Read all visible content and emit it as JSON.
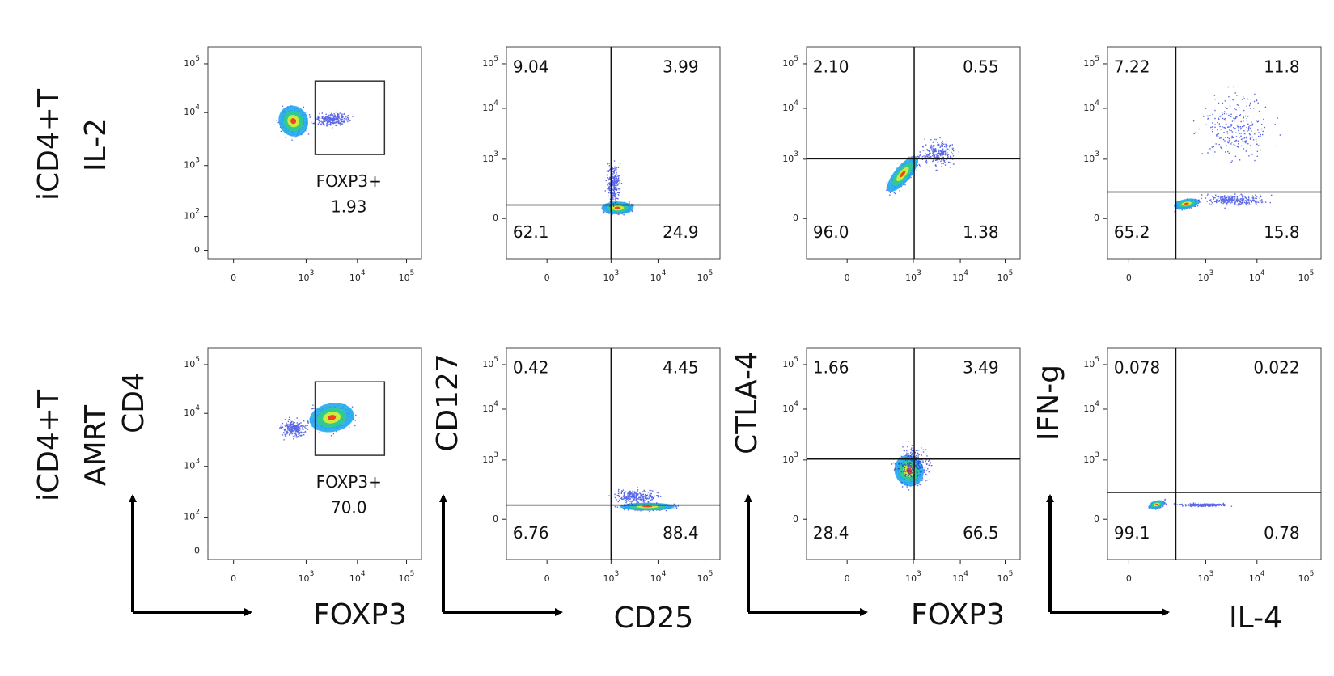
{
  "rows": [
    {
      "label": [
        "iCD4+T",
        "IL-2"
      ]
    },
    {
      "label": [
        "iCD4+T",
        "AMRT"
      ]
    }
  ],
  "columns": [
    {
      "y_axis": "CD4",
      "x_axis": "FOXP3"
    },
    {
      "y_axis": "CD127",
      "x_axis": "CD25"
    },
    {
      "y_axis": "CTLA-4",
      "x_axis": "FOXP3"
    },
    {
      "y_axis": "IFN-g",
      "x_axis": "IL-4"
    }
  ],
  "gate_yticks": [
    {
      "base": "10",
      "exp": "5"
    },
    {
      "base": "10",
      "exp": "4"
    },
    {
      "base": "10",
      "exp": "3"
    },
    {
      "base": "10",
      "exp": "2"
    },
    "0"
  ],
  "quad_yticks": [
    {
      "base": "10",
      "exp": "5"
    },
    {
      "base": "10",
      "exp": "4"
    },
    {
      "base": "10",
      "exp": "3"
    },
    "0"
  ],
  "xticks": [
    "0",
    {
      "base": "10",
      "exp": "3"
    },
    {
      "base": "10",
      "exp": "4"
    },
    {
      "base": "10",
      "exp": "5"
    }
  ],
  "panels": [
    [
      {
        "gate": "FOXP3+",
        "value": "1.93"
      },
      {
        "quadrants": [
          "9.04",
          "3.99",
          "62.1",
          "24.9"
        ]
      },
      {
        "quadrants": [
          "2.10",
          "0.55",
          "96.0",
          "1.38"
        ]
      },
      {
        "quadrants": [
          "7.22",
          "11.8",
          "65.2",
          "15.8"
        ]
      }
    ],
    [
      {
        "gate": "FOXP3+",
        "value": "70.0"
      },
      {
        "quadrants": [
          "0.42",
          "4.45",
          "6.76",
          "88.4"
        ]
      },
      {
        "quadrants": [
          "1.66",
          "3.49",
          "28.4",
          "66.5"
        ]
      },
      {
        "quadrants": [
          "0.078",
          "0.022",
          "99.1",
          "0.78"
        ]
      }
    ]
  ]
}
